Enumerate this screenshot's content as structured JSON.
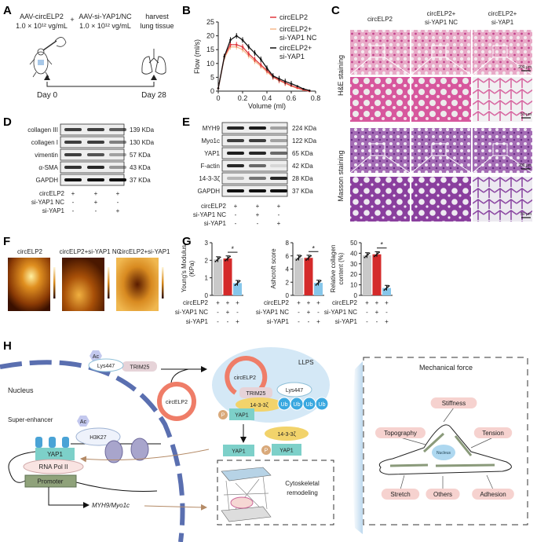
{
  "panel_labels": [
    "A",
    "B",
    "C",
    "D",
    "E",
    "F",
    "G",
    "H"
  ],
  "panel_a": {
    "injection1": [
      "AAV-circELP2",
      "1.0 × 10¹² vg/mL"
    ],
    "plus": "+",
    "injection2": [
      "AAV-si-YAP1/NC",
      "1.0 × 10¹² vg/mL"
    ],
    "harvest": [
      "harvest",
      "lung tissue"
    ],
    "day0": "Day 0",
    "day28": "Day 28"
  },
  "chart_data": [
    {
      "type": "line",
      "xlabel": "Volume (ml)",
      "ylabel": "Flow (ml/s)",
      "xlim": [
        0,
        0.8
      ],
      "ylim": [
        0,
        25
      ],
      "xticks": [
        "0",
        "0.2",
        "0.4",
        "0.6",
        "0.8"
      ],
      "yticks": [
        "0",
        "5",
        "10",
        "15",
        "20",
        "25"
      ],
      "legend_position": "top-right",
      "x": [
        0,
        0.05,
        0.1,
        0.15,
        0.2,
        0.25,
        0.3,
        0.35,
        0.4,
        0.45,
        0.5,
        0.55,
        0.6,
        0.65,
        0.7,
        0.75
      ],
      "series": [
        {
          "name": "circELP2",
          "color": "#e0393e",
          "values": [
            1,
            12.5,
            16.8,
            16.8,
            16,
            13.5,
            11.5,
            9.5,
            7.5,
            5.2,
            4,
            3,
            2,
            1.2,
            0.5,
            0
          ]
        },
        {
          "name": "circELP2+ si-YAP1 NC",
          "color": "#f5b98c",
          "values": [
            1,
            12,
            16,
            16,
            15,
            12.8,
            10.8,
            9,
            7,
            5,
            3.8,
            2.8,
            1.8,
            1,
            0.4,
            0
          ]
        },
        {
          "name": "circELP2+ si-YAP1",
          "color": "#111111",
          "values": [
            1,
            12.5,
            18.5,
            20,
            18.5,
            16,
            13.8,
            11.5,
            8.3,
            5.5,
            4.5,
            3.5,
            2.7,
            1.8,
            0.8,
            0.2
          ]
        }
      ]
    },
    {
      "type": "bar",
      "ylabel": [
        "Young's Modulus",
        "(KPa)"
      ],
      "ylim": [
        0,
        3
      ],
      "yticks": [
        "0",
        "1",
        "2",
        "3"
      ],
      "values": [
        2.05,
        2.1,
        0.7
      ],
      "significance": "*"
    },
    {
      "type": "bar",
      "ylabel": [
        "Ashcroft score"
      ],
      "ylim": [
        0,
        8
      ],
      "yticks": [
        "0",
        "2",
        "4",
        "6",
        "8"
      ],
      "values": [
        5.7,
        5.7,
        1.9
      ],
      "significance": "*"
    },
    {
      "type": "bar",
      "ylabel": [
        "Relative collagen",
        "content (%)"
      ],
      "ylim": [
        0,
        50
      ],
      "yticks": [
        "0",
        "10",
        "20",
        "30",
        "40",
        "50"
      ],
      "values": [
        38,
        39,
        7
      ],
      "significance": "*"
    }
  ],
  "bar_colors": [
    "#c9c9c9",
    "#d42a2a",
    "#86c6ea"
  ],
  "conditions": {
    "rows": [
      {
        "name": "circELP2",
        "signs": [
          "+",
          "+",
          "+"
        ]
      },
      {
        "name": "si-YAP1 NC",
        "signs": [
          "-",
          "+",
          "-"
        ]
      },
      {
        "name": "si-YAP1",
        "signs": [
          "-",
          "-",
          "+"
        ]
      }
    ]
  },
  "panel_c": {
    "columns": [
      "circELP2",
      "circELP2+\nsi-YAP1 NC",
      "circELP2+\nsi-YAP1"
    ],
    "rows": [
      "H&E staining",
      "Masson staining"
    ],
    "scale_low": "200 μm",
    "scale_high": "50 μm"
  },
  "panel_d": {
    "bands": [
      {
        "name": "collagen III",
        "kda": "139 KDa",
        "intensity": [
          0.8,
          0.8,
          0.65
        ]
      },
      {
        "name": "collagen I",
        "kda": "130 KDa",
        "intensity": [
          0.8,
          0.8,
          0.5
        ]
      },
      {
        "name": "vimentin",
        "kda": "57 KDa",
        "intensity": [
          0.8,
          0.7,
          0.35
        ]
      },
      {
        "name": "α-SMA",
        "kda": "43 KDa",
        "intensity": [
          0.85,
          0.9,
          0.4
        ]
      },
      {
        "name": "GAPDH",
        "kda": "37 KDa",
        "intensity": [
          1,
          1,
          1
        ]
      }
    ]
  },
  "panel_e": {
    "bands": [
      {
        "name": "MYH9",
        "kda": "224 KDa",
        "intensity": [
          0.9,
          0.95,
          0.35
        ]
      },
      {
        "name": "Myo1c",
        "kda": "122 KDa",
        "intensity": [
          0.8,
          0.8,
          0.35
        ]
      },
      {
        "name": "YAP1",
        "kda": "65 KDa",
        "intensity": [
          0.95,
          0.9,
          0.6
        ]
      },
      {
        "name": "F-actin",
        "kda": "42 KDa",
        "intensity": [
          0.9,
          0.6,
          0.1
        ]
      },
      {
        "name": "14-3-3ζ",
        "kda": "28 KDa",
        "intensity": [
          0.25,
          0.55,
          0.9
        ]
      },
      {
        "name": "GAPDH",
        "kda": "37 KDa",
        "intensity": [
          1,
          1,
          1
        ]
      }
    ]
  },
  "panel_f": {
    "titles": [
      "circELP2",
      "circELP2+si-YAP1 NC",
      "circELP2+si-YAP1"
    ]
  },
  "panel_h": {
    "nucleus": "Nucleus",
    "ac": "Ac",
    "lys447": "Lys447",
    "trim25": "TRIM25",
    "circelp2": "circELP2",
    "super_enhancer": "Super-enhancer",
    "h3k27": "H3K27",
    "yap1": "YAP1",
    "rna_pol": "RNA Pol II",
    "promoter": "Promoter",
    "genes": "MYH9/Myo1c",
    "llps": "LLPS",
    "p": "P",
    "ub": "Ub",
    "protein_1433": "14-3-3ζ",
    "cyto": [
      "Cytoskeletal",
      "remodeling"
    ],
    "mech_title": "Mechanical force",
    "cell_nucleus": "Nucleus",
    "forces": [
      "Stiffness",
      "Topography",
      "Tension",
      "Stretch",
      "Others",
      "Adhesion"
    ]
  }
}
